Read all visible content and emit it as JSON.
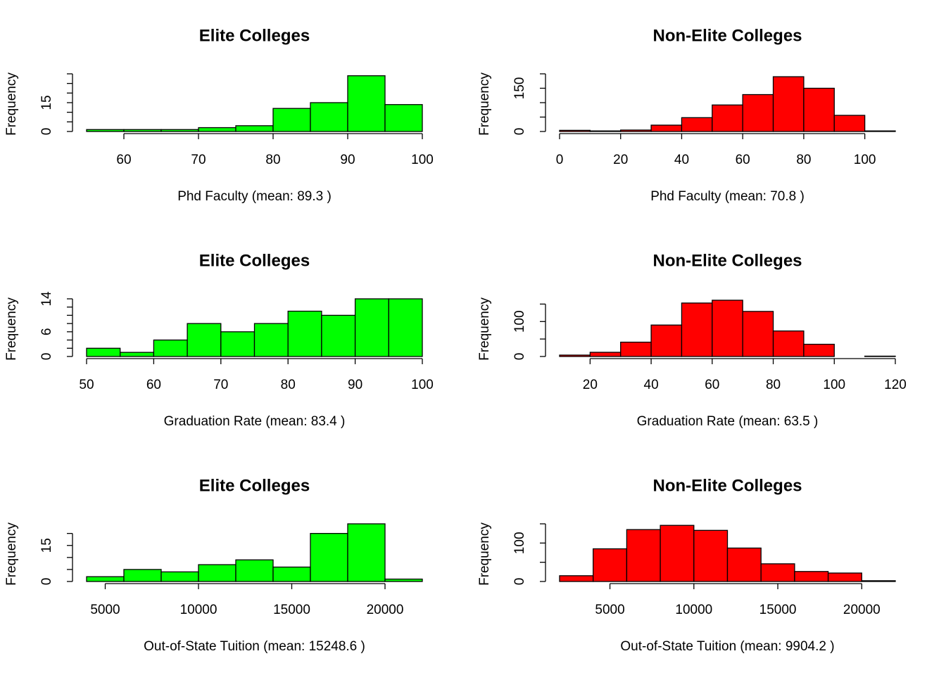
{
  "chart_data": [
    {
      "type": "histogram",
      "title": "Elite Colleges",
      "xlabel": "Phd Faculty (mean:  89.3 )",
      "ylabel": "Frequency",
      "color": "#00ff00",
      "bins": [
        55,
        60,
        65,
        70,
        75,
        80,
        85,
        90,
        95,
        100
      ],
      "values": [
        1,
        1,
        1,
        2,
        3,
        12,
        15,
        29,
        14
      ],
      "xlim": [
        55,
        100
      ],
      "ylim": [
        0,
        30
      ],
      "xticks": [
        60,
        70,
        80,
        90,
        100
      ],
      "yticks": [
        0,
        15
      ],
      "yticks_minor": [
        5,
        10,
        20,
        25,
        30
      ]
    },
    {
      "type": "histogram",
      "title": "Non-Elite Colleges",
      "xlabel": "Phd Faculty (mean:  70.8 )",
      "ylabel": "Frequency",
      "color": "#ff0000",
      "bins": [
        0,
        10,
        20,
        30,
        40,
        50,
        60,
        70,
        80,
        90,
        100,
        110
      ],
      "values": [
        4,
        2,
        5,
        22,
        48,
        92,
        128,
        190,
        150,
        56,
        2
      ],
      "xlim": [
        0,
        110
      ],
      "ylim": [
        0,
        200
      ],
      "xticks": [
        0,
        20,
        40,
        60,
        80,
        100
      ],
      "yticks": [
        0,
        150
      ],
      "yticks_minor": [
        50,
        100,
        200
      ]
    },
    {
      "type": "histogram",
      "title": "Elite Colleges",
      "xlabel": "Graduation Rate (mean:  83.4 )",
      "ylabel": "Frequency",
      "color": "#00ff00",
      "bins": [
        50,
        55,
        60,
        65,
        70,
        75,
        80,
        85,
        90,
        95,
        100
      ],
      "values": [
        2,
        1,
        4,
        8,
        6,
        8,
        11,
        10,
        14,
        14
      ],
      "xlim": [
        50,
        100
      ],
      "ylim": [
        0,
        14
      ],
      "xticks": [
        50,
        60,
        70,
        80,
        90,
        100
      ],
      "yticks": [
        0,
        6,
        14
      ],
      "yticks_minor": [
        2,
        4,
        8,
        10,
        12
      ]
    },
    {
      "type": "histogram",
      "title": "Non-Elite Colleges",
      "xlabel": "Graduation Rate (mean:  63.5 )",
      "ylabel": "Frequency",
      "color": "#ff0000",
      "bins": [
        10,
        20,
        30,
        40,
        50,
        60,
        70,
        80,
        90,
        100,
        110,
        120
      ],
      "values": [
        4,
        12,
        41,
        90,
        153,
        161,
        129,
        73,
        35,
        0,
        1
      ],
      "xlim": [
        10,
        120
      ],
      "ylim": [
        0,
        165
      ],
      "xticks": [
        20,
        40,
        60,
        80,
        100,
        120
      ],
      "yticks": [
        0,
        100
      ],
      "yticks_minor": [
        50,
        150
      ]
    },
    {
      "type": "histogram",
      "title": "Elite Colleges",
      "xlabel": "Out-of-State Tuition (mean: 15248.6 )",
      "ylabel": "Frequency",
      "color": "#00ff00",
      "bins": [
        4000,
        6000,
        8000,
        10000,
        12000,
        14000,
        16000,
        18000,
        20000,
        22000
      ],
      "values": [
        2,
        5,
        4,
        7,
        9,
        6,
        20,
        24,
        1
      ],
      "xlim": [
        4000,
        22000
      ],
      "ylim": [
        0,
        24
      ],
      "xticks": [
        5000,
        10000,
        15000,
        20000
      ],
      "yticks": [
        0,
        15
      ],
      "yticks_minor": [
        5,
        10,
        20
      ]
    },
    {
      "type": "histogram",
      "title": "Non-Elite Colleges",
      "xlabel": "Out-of-State Tuition (mean: 9904.2 )",
      "ylabel": "Frequency",
      "color": "#ff0000",
      "bins": [
        2000,
        4000,
        6000,
        8000,
        10000,
        12000,
        14000,
        16000,
        18000,
        20000,
        22000
      ],
      "values": [
        15,
        85,
        135,
        146,
        133,
        87,
        46,
        26,
        22,
        2
      ],
      "xlim": [
        2000,
        22000
      ],
      "ylim": [
        0,
        150
      ],
      "xticks": [
        5000,
        10000,
        15000,
        20000
      ],
      "yticks": [
        0,
        100
      ],
      "yticks_minor": [
        50,
        150
      ]
    }
  ]
}
